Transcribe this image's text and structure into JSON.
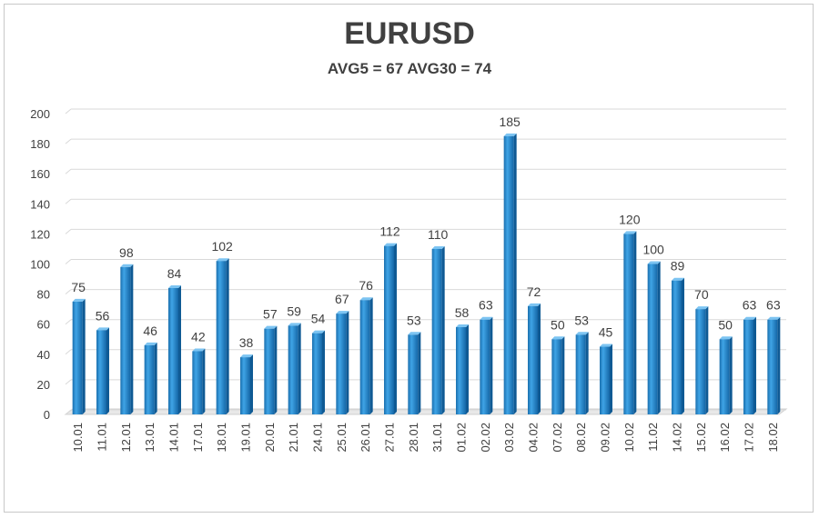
{
  "chart_data": {
    "type": "bar",
    "title": "EURUSD",
    "subtitle": "AVG5 = 67 AVG30 = 74",
    "xlabel": "",
    "ylabel": "",
    "ylim": [
      0,
      200
    ],
    "yticks": [
      0,
      20,
      40,
      60,
      80,
      100,
      120,
      140,
      160,
      180,
      200
    ],
    "grid": true,
    "legend": "none",
    "bar_color": "#2e8fd3",
    "categories": [
      "10.01",
      "11.01",
      "12.01",
      "13.01",
      "14.01",
      "17.01",
      "18.01",
      "19.01",
      "20.01",
      "21.01",
      "24.01",
      "25.01",
      "26.01",
      "27.01",
      "28.01",
      "31.01",
      "01.02",
      "02.02",
      "03.02",
      "04.02",
      "07.02",
      "08.02",
      "09.02",
      "10.02",
      "11.02",
      "14.02",
      "15.02",
      "16.02",
      "17.02",
      "18.02"
    ],
    "values": [
      75,
      56,
      98,
      46,
      84,
      42,
      102,
      38,
      57,
      59,
      54,
      67,
      76,
      112,
      53,
      110,
      58,
      63,
      185,
      72,
      50,
      53,
      45,
      120,
      100,
      89,
      70,
      50,
      63,
      63
    ]
  }
}
